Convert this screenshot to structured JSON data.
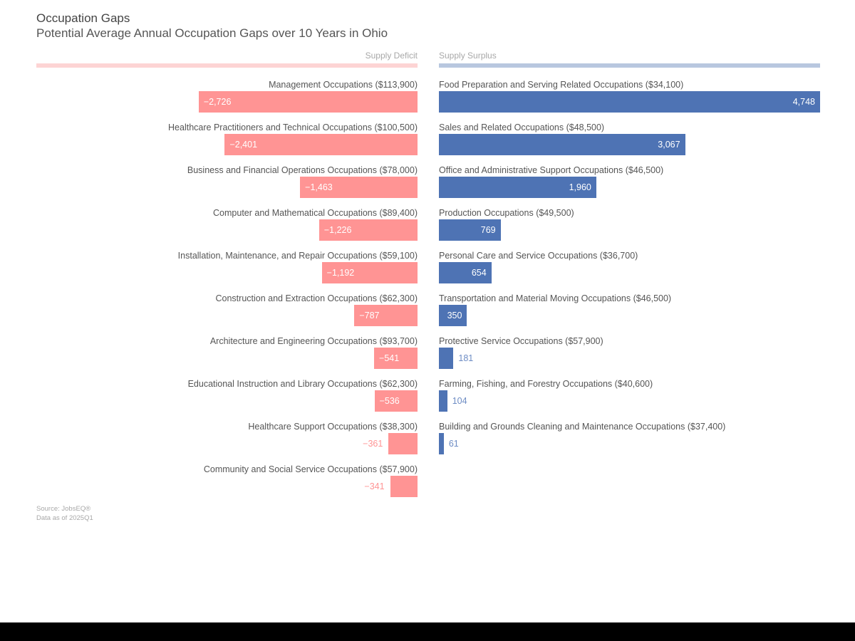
{
  "header": {
    "title": "Occupation Gaps",
    "subtitle": "Potential Average Annual Occupation Gaps over 10 Years in Ohio"
  },
  "legend": {
    "deficit_label": "Supply Deficit",
    "surplus_label": "Supply Surplus"
  },
  "colors": {
    "deficit": "#ff9494",
    "surplus": "#4e73b4",
    "deficit_rule": "#fdd4d4",
    "surplus_rule": "#b8c7df"
  },
  "footer": {
    "source": "Source: JobsEQ®",
    "data_as_of": "Data as of 2025Q1"
  },
  "chart_data": {
    "type": "bar",
    "orientation": "horizontal-diverging",
    "title": "Occupation Gaps",
    "subtitle": "Potential Average Annual Occupation Gaps over 10 Years in Ohio",
    "series": [
      {
        "name": "Supply Deficit",
        "categories": [
          "Management Occupations ($113,900)",
          "Healthcare Practitioners and Technical Occupations ($100,500)",
          "Business and Financial Operations Occupations ($78,000)",
          "Computer and Mathematical Occupations ($89,400)",
          "Installation, Maintenance, and Repair Occupations ($59,100)",
          "Construction and Extraction Occupations ($62,300)",
          "Architecture and Engineering Occupations ($93,700)",
          "Educational Instruction and Library Occupations ($62,300)",
          "Healthcare Support Occupations ($38,300)",
          "Community and Social Service Occupations ($57,900)"
        ],
        "values": [
          -2726,
          -2401,
          -1463,
          -1226,
          -1192,
          -787,
          -541,
          -536,
          -361,
          -341
        ],
        "labels": [
          "−2,726",
          "−2,401",
          "−1,463",
          "−1,226",
          "−1,192",
          "−787",
          "−541",
          "−536",
          "−361",
          "−341"
        ]
      },
      {
        "name": "Supply Surplus",
        "categories": [
          "Food Preparation and Serving Related Occupations ($34,100)",
          "Sales and Related Occupations ($48,500)",
          "Office and Administrative Support Occupations ($46,500)",
          "Production Occupations ($49,500)",
          "Personal Care and Service Occupations ($36,700)",
          "Transportation and Material Moving Occupations ($46,500)",
          "Protective Service Occupations ($57,900)",
          "Farming, Fishing, and Forestry Occupations ($40,600)",
          "Building and Grounds Cleaning and Maintenance Occupations ($37,400)"
        ],
        "values": [
          4748,
          3067,
          1960,
          769,
          654,
          350,
          181,
          104,
          61
        ],
        "labels": [
          "4,748",
          "3,067",
          "1,960",
          "769",
          "654",
          "350",
          "181",
          "104",
          "61"
        ]
      }
    ],
    "xlim": [
      0,
      4748
    ],
    "grid": false
  }
}
